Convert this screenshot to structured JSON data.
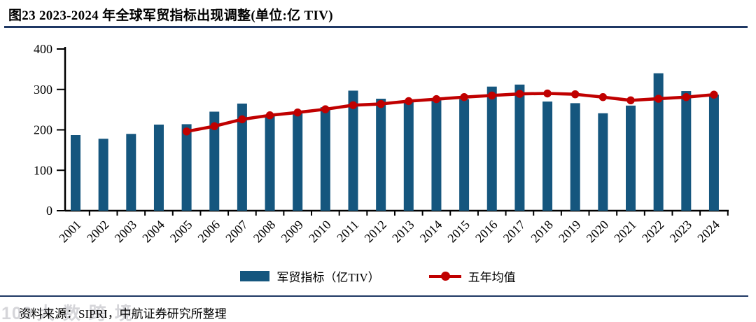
{
  "header": {
    "title": "图23  2023-2024 年全球军贸指标出现调整(单位:亿 TIV)"
  },
  "chart_data": {
    "type": "bar",
    "title": "图23 2023-2024 年全球军贸指标出现调整",
    "unit": "亿 TIV",
    "categories": [
      "2001",
      "2002",
      "2003",
      "2004",
      "2005",
      "2006",
      "2007",
      "2008",
      "2009",
      "2010",
      "2011",
      "2012",
      "2013",
      "2014",
      "2015",
      "2016",
      "2017",
      "2018",
      "2019",
      "2020",
      "2021",
      "2022",
      "2023",
      "2024"
    ],
    "series": [
      {
        "name": "军贸指标（亿TIV）",
        "type": "bar",
        "color": "#15567E",
        "values": [
          187,
          178,
          190,
          213,
          214,
          245,
          265,
          238,
          246,
          256,
          297,
          277,
          271,
          273,
          276,
          307,
          312,
          270,
          266,
          241,
          260,
          340,
          296,
          287
        ]
      },
      {
        "name": "五年均值",
        "type": "line",
        "color": "#C00000",
        "start_category": "2005",
        "values": [
          196,
          209,
          226,
          236,
          243,
          251,
          261,
          264,
          271,
          276,
          281,
          285,
          289,
          290,
          288,
          281,
          273,
          277,
          281,
          287
        ]
      }
    ],
    "xlabel": "",
    "ylabel": "",
    "ylim": [
      0,
      400
    ],
    "yticks": [
      0,
      100,
      200,
      300,
      400
    ],
    "grid": false,
    "legend_position": "bottom"
  },
  "legend": {
    "bar_label": "军贸指标（亿TIV）",
    "line_label": "五年均值"
  },
  "footer": {
    "source": "资料来源：SIPRI，中航证券研究所整理",
    "watermark_logo": "100",
    "watermark_text": "大数跨境"
  },
  "colors": {
    "bar": "#15567E",
    "line": "#C00000",
    "rule": "#1F3864",
    "axis": "#000000"
  }
}
